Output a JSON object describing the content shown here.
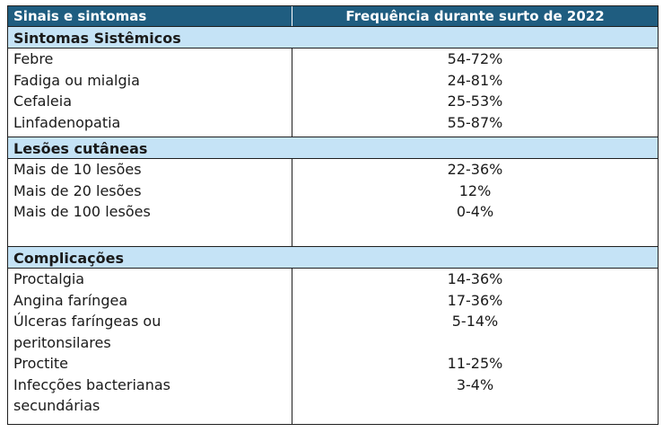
{
  "header": {
    "col1": "Sinais e sintomas",
    "col2": "Frequência durante surto de 2022"
  },
  "sections": [
    {
      "title": "Sintomas Sistêmicos",
      "rows": [
        {
          "label": "Febre",
          "value": "54-72%"
        },
        {
          "label": "Fadiga ou mialgia",
          "value": "24-81%"
        },
        {
          "label": "Cefaleia",
          "value": "25-53%"
        },
        {
          "label": "Linfadenopatia",
          "value": "55-87%"
        }
      ]
    },
    {
      "title": "Lesões cutâneas",
      "rows": [
        {
          "label": "Mais de 10 lesões",
          "value": "22-36%"
        },
        {
          "label": "Mais de 20 lesões",
          "value": "12%"
        },
        {
          "label": "Mais de 100 lesões",
          "value": "0-4%"
        }
      ]
    },
    {
      "title": "Complicações",
      "rows": [
        {
          "label": "Proctalgia",
          "value": "14-36%"
        },
        {
          "label": "Angina faríngea",
          "value": "17-36%"
        },
        {
          "label": "Úlceras faríngeas ou peritonsilares",
          "value": "5-14%"
        },
        {
          "label": "Proctite",
          "value": "11-25%"
        },
        {
          "label": "Infecções bacterianas secundárias",
          "value": "3-4%"
        }
      ]
    }
  ]
}
